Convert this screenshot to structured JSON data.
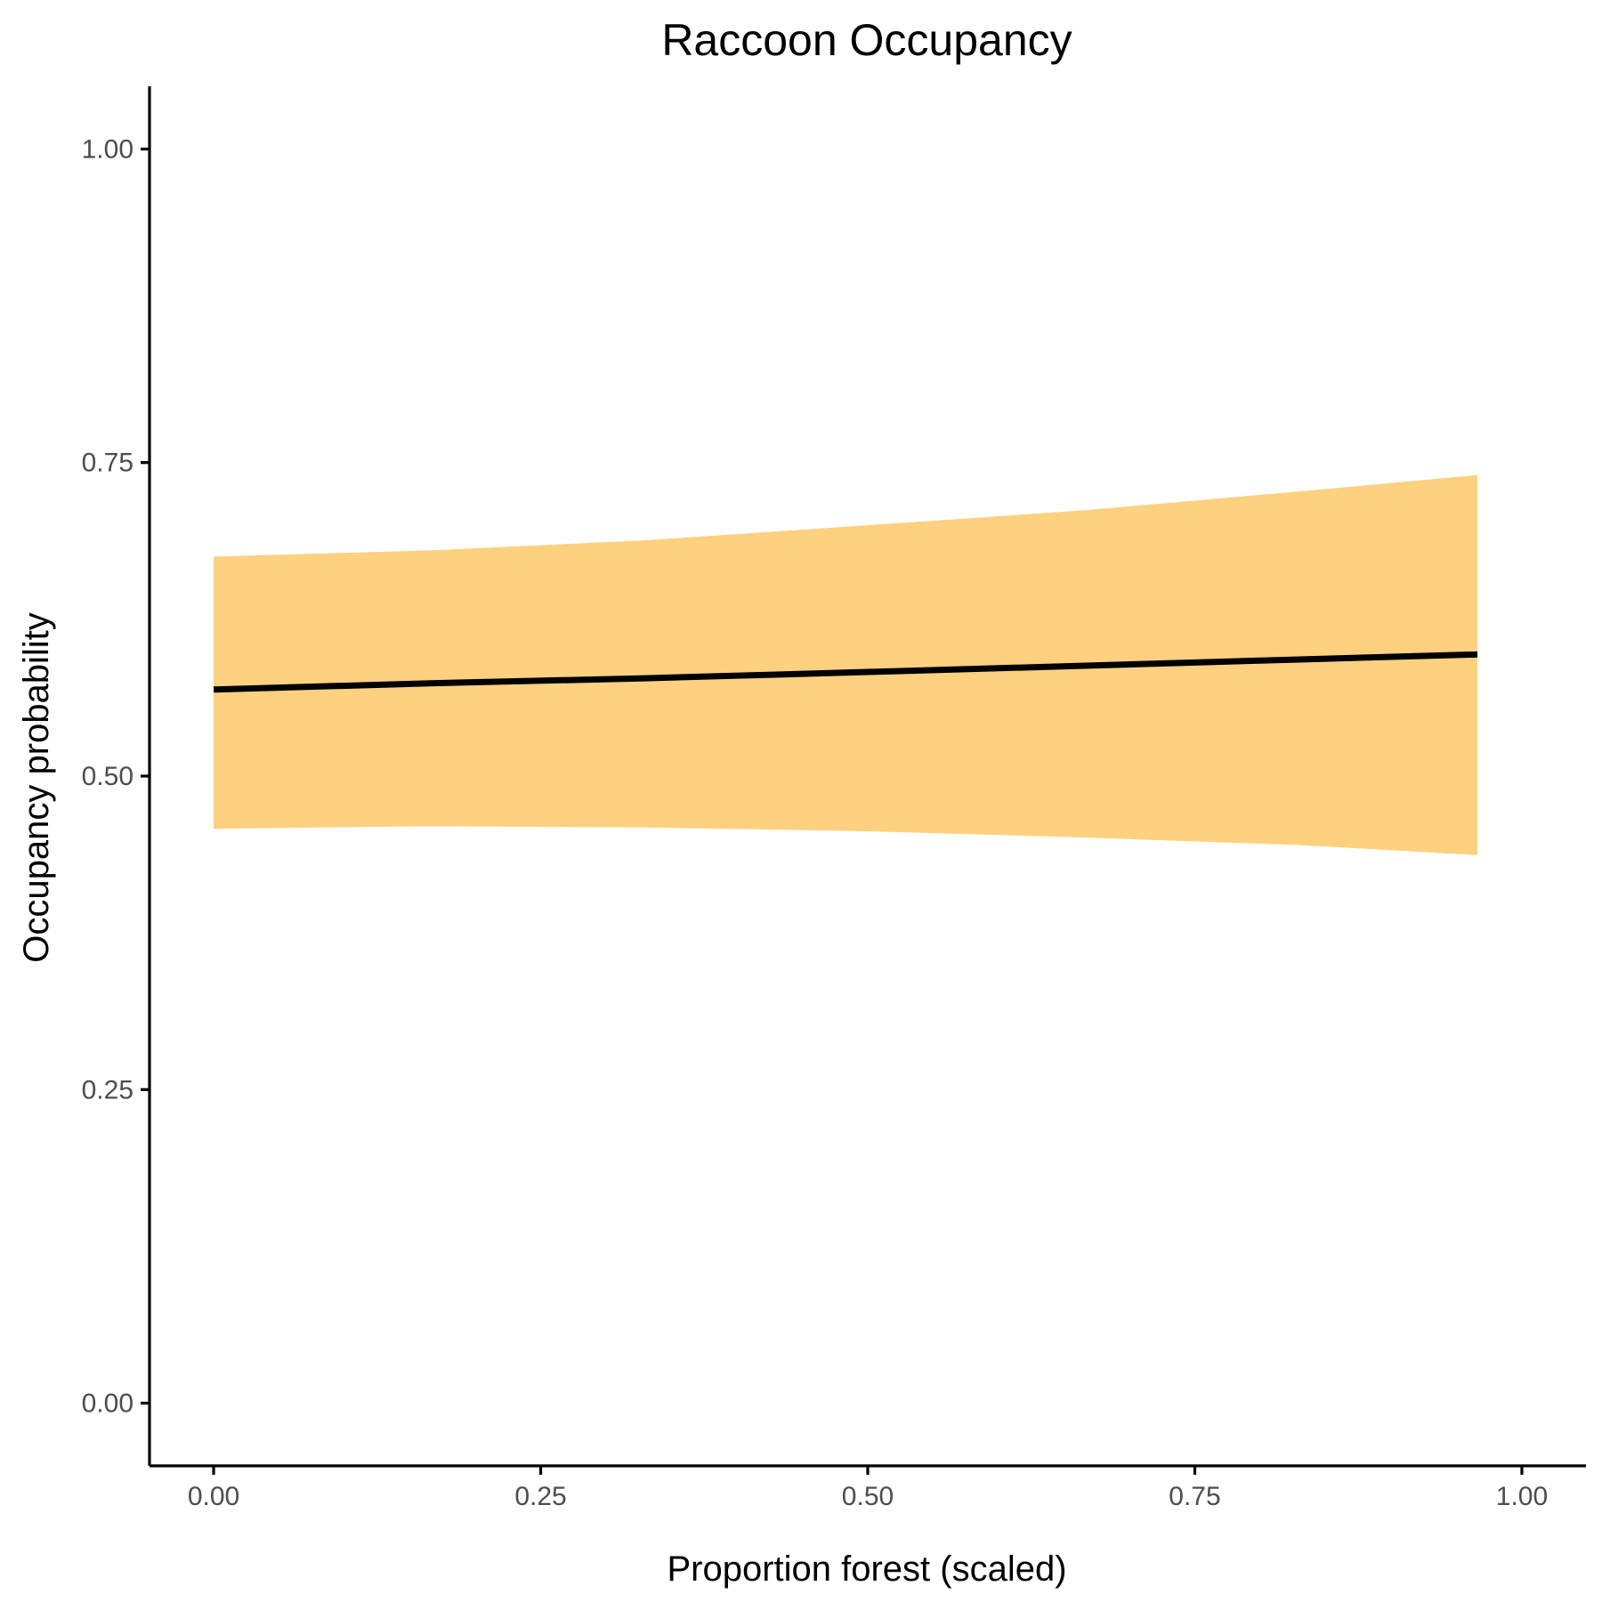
{
  "chart_data": {
    "type": "line",
    "title": "Raccoon Occupancy",
    "xlabel": "Proportion forest (scaled)",
    "ylabel": "Occupancy probability",
    "xlim": [
      -0.049,
      1.049
    ],
    "ylim": [
      -0.05,
      1.05
    ],
    "x_ticks": [
      0,
      0.25,
      0.5,
      0.75,
      1
    ],
    "x_tick_labels": [
      "0.00",
      "0.25",
      "0.50",
      "0.75",
      "1.00"
    ],
    "y_ticks": [
      0,
      0.25,
      0.5,
      0.75,
      1
    ],
    "y_tick_labels": [
      "0.00",
      "0.25",
      "0.50",
      "0.75",
      "1.00"
    ],
    "grid": false,
    "line_color": "#000000",
    "ribbon_color": "#fdd180",
    "series": [
      {
        "x": [
          0,
          0.166,
          0.33,
          0.5,
          0.666,
          0.83,
          0.966
        ],
        "y": [
          0.569,
          0.574,
          0.578,
          0.583,
          0.588,
          0.593,
          0.597
        ],
        "lower": [
          0.458,
          0.46,
          0.459,
          0.456,
          0.451,
          0.445,
          0.437
        ],
        "upper": [
          0.675,
          0.68,
          0.688,
          0.7,
          0.712,
          0.727,
          0.74
        ]
      }
    ]
  }
}
